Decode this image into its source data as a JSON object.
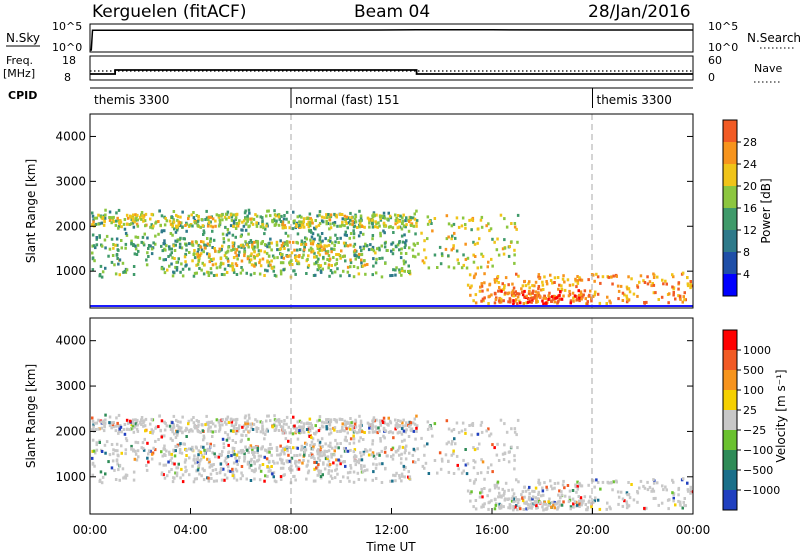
{
  "header": {
    "site": "Kerguelen (fitACF)",
    "beam": "Beam 04",
    "date": "28/Jan/2016"
  },
  "nsky_panel": {
    "left_label": "N.Sky",
    "left_ticks": [
      "10^5",
      "10^0"
    ],
    "right_label": "N.Search",
    "right_ticks": [
      "10^5",
      "10^0"
    ]
  },
  "freq_panel": {
    "left_label_1": "Freq.",
    "left_label_2": "[MHz]",
    "left_ticks": [
      "18",
      "8"
    ],
    "right_label": "Nave",
    "right_ticks": [
      "60",
      "0"
    ]
  },
  "cpid": {
    "label": "CPID",
    "modes": [
      {
        "name": "themis 3300",
        "start_hour": 0,
        "end_hour": 8
      },
      {
        "name": "normal (fast) 151",
        "start_hour": 8,
        "end_hour": 20
      },
      {
        "name": "themis 3300",
        "start_hour": 20,
        "end_hour": 24
      }
    ]
  },
  "power_panel": {
    "ylabel": "Slant Range [km]",
    "colorbar_label": "Power [dB]",
    "colorbar_ticks": [
      "28",
      "24",
      "20",
      "16",
      "12",
      "8",
      "4"
    ]
  },
  "velocity_panel": {
    "ylabel": "Slant Range [km]",
    "colorbar_label": "Velocity  [m s⁻¹]",
    "colorbar_ticks": [
      "1000",
      "500",
      "100",
      "25",
      "−25",
      "−100",
      "−500",
      "−1000"
    ]
  },
  "time_axis": {
    "xlabel": "Time UT",
    "ticks": [
      "00:00",
      "04:00",
      "08:00",
      "12:00",
      "16:00",
      "20:00",
      "00:00"
    ]
  },
  "colors": {
    "power_scale": [
      "#0000ff",
      "#1f4fa8",
      "#2e7a8a",
      "#3f9a6a",
      "#8cc63f",
      "#f0c419",
      "#f7941d",
      "#f15a24",
      "#ff0000"
    ],
    "velocity_scale": [
      "#2040c0",
      "#1a6f8a",
      "#2e8b57",
      "#6ac12f",
      "#c8c8c8",
      "#f5d000",
      "#f7941d",
      "#f15a24",
      "#ff0000"
    ],
    "ground_scatter": "#c8c8c8"
  },
  "chart_data": [
    {
      "type": "line",
      "panel": "N.Sky / N.Search",
      "x_unit": "hour UT",
      "y_scale": "log",
      "ylim": [
        1,
        100000
      ],
      "series": [
        {
          "points": [
            [
              0,
              1
            ],
            [
              0.05,
              1
            ],
            [
              0.1,
              30000
            ],
            [
              4,
              30000
            ],
            [
              8,
              30000
            ],
            [
              13,
              40000
            ],
            [
              16,
              40000
            ],
            [
              20,
              35000
            ],
            [
              24,
              35000
            ]
          ]
        }
      ]
    },
    {
      "type": "line",
      "panel": "Freq. / Nave",
      "x_unit": "hour UT",
      "ylim": [
        8,
        18
      ],
      "series": [
        {
          "line": "solid",
          "points": [
            [
              0,
              10
            ],
            [
              1,
              10
            ],
            [
              1,
              12
            ],
            [
              13,
              12
            ],
            [
              13,
              10
            ],
            [
              24,
              10
            ]
          ]
        },
        {
          "line": "dotted",
          "points": [
            [
              0,
              11.5
            ],
            [
              24,
              11.5
            ]
          ]
        }
      ]
    },
    {
      "type": "heatmap",
      "panel": "Power [dB]",
      "x_unit": "hour UT",
      "xlim": [
        0,
        24
      ],
      "ylim": [
        180,
        4500
      ],
      "colorbar_range": [
        0,
        32
      ],
      "echo_bands": [
        {
          "t_start": 0,
          "t_end": 13,
          "range_start": 1500,
          "range_end": 2400,
          "level": 12
        },
        {
          "t_start": 0,
          "t_end": 13,
          "range_start": 2000,
          "range_end": 2300,
          "level": 18
        },
        {
          "t_start": 0,
          "t_end": 13,
          "range_start": 900,
          "range_end": 1700,
          "level": 14
        },
        {
          "t_start": 4,
          "t_end": 11,
          "range_start": 1100,
          "range_end": 1700,
          "level": 20
        },
        {
          "t_start": 13,
          "t_end": 17,
          "range_start": 1100,
          "range_end": 2300,
          "level": 18
        },
        {
          "t_start": 15,
          "t_end": 24,
          "range_start": 300,
          "range_end": 1000,
          "level": 24
        },
        {
          "t_start": 16,
          "t_end": 20,
          "range_start": 300,
          "range_end": 600,
          "level": 28
        }
      ]
    },
    {
      "type": "heatmap",
      "panel": "Velocity [m s-1]",
      "x_unit": "hour UT",
      "xlim": [
        0,
        24
      ],
      "ylim": [
        180,
        4500
      ],
      "colorbar_range": [
        -1000,
        1000
      ]
    }
  ]
}
